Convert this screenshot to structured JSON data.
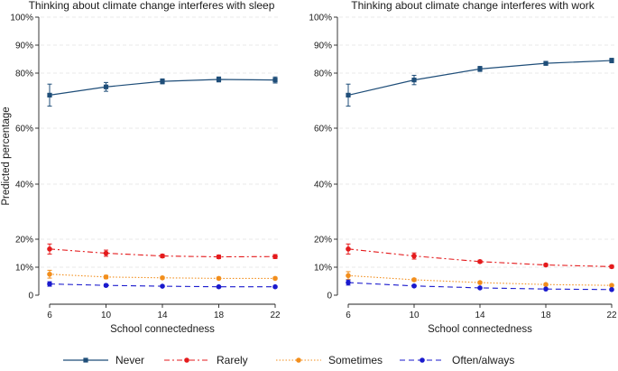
{
  "chart_data": {
    "type": "line",
    "ylabel": "Predicted percentage",
    "xlabel": "School connectedness",
    "x": [
      6,
      10,
      14,
      18,
      22
    ],
    "y_ticks": [
      0,
      10,
      20,
      40,
      60,
      80,
      90,
      100
    ],
    "y_tick_labels": [
      "0",
      "10%",
      "20%",
      "40%",
      "60%",
      "80%",
      "90%",
      "100%"
    ],
    "ylim": [
      0,
      100
    ],
    "xlim": [
      6,
      22
    ],
    "colors": {
      "Never": "#1f4e79",
      "Rarely": "#e41a1c",
      "Sometimes": "#f28e1c",
      "Often/always": "#1a1acd"
    },
    "legend": [
      "Never",
      "Rarely",
      "Sometimes",
      "Often/always"
    ],
    "panels": [
      {
        "title": "Thinking about climate change interferes with sleep",
        "series": [
          {
            "name": "Never",
            "values": [
              72,
              75,
              77,
              77.7,
              77.5
            ],
            "err": [
              4,
              1.6,
              0.9,
              0.9,
              1.1
            ]
          },
          {
            "name": "Rarely",
            "values": [
              16.5,
              15,
              14,
              13.7,
              13.8
            ],
            "err": [
              1.8,
              1.1,
              0.6,
              0.6,
              0.7
            ]
          },
          {
            "name": "Sometimes",
            "values": [
              7.5,
              6.5,
              6.2,
              6,
              6
            ],
            "err": [
              1.4,
              0.6,
              0.4,
              0.4,
              0.4
            ]
          },
          {
            "name": "Often/always",
            "values": [
              4,
              3.5,
              3.2,
              3,
              3
            ],
            "err": [
              0.8,
              0.4,
              0.3,
              0.3,
              0.3
            ]
          }
        ]
      },
      {
        "title": "Thinking about climate change interferes with work",
        "series": [
          {
            "name": "Never",
            "values": [
              72,
              77.5,
              81.5,
              83.5,
              84.5
            ],
            "err": [
              4,
              1.7,
              0.9,
              0.7,
              0.8
            ]
          },
          {
            "name": "Rarely",
            "values": [
              16.5,
              14,
              12,
              10.8,
              10.2
            ],
            "err": [
              1.8,
              1.1,
              0.5,
              0.4,
              0.5
            ]
          },
          {
            "name": "Sometimes",
            "values": [
              7,
              5.5,
              4.5,
              3.8,
              3.5
            ],
            "err": [
              1.4,
              0.5,
              0.3,
              0.3,
              0.3
            ]
          },
          {
            "name": "Often/always",
            "values": [
              4.5,
              3.3,
              2.6,
              2.2,
              2
            ],
            "err": [
              0.9,
              0.4,
              0.3,
              0.3,
              0.3
            ]
          }
        ]
      }
    ]
  }
}
